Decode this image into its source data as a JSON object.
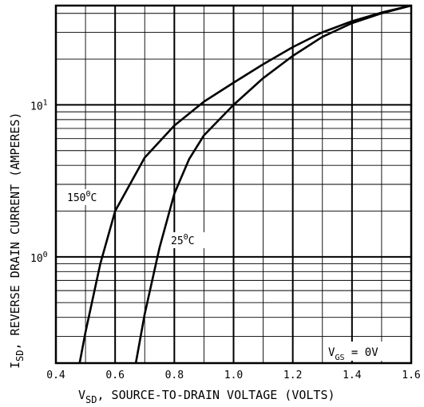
{
  "chart_data": {
    "type": "line",
    "xlabel": {
      "symbol": "V",
      "subscript": "SD",
      "text": ", SOURCE-TO-DRAIN VOLTAGE (VOLTS)"
    },
    "ylabel": {
      "symbol": "I",
      "subscript": "SD",
      "text": ", REVERSE DRAIN CURRENT (AMPERES)"
    },
    "x_ticks": [
      "0.4",
      "0.6",
      "0.8",
      "1.0",
      "1.2",
      "1.4",
      "1.6"
    ],
    "y_ticks": [
      {
        "base": "10",
        "exp": "0",
        "value": 1
      },
      {
        "base": "10",
        "exp": "1",
        "value": 10
      }
    ],
    "xlim": [
      0.4,
      1.6
    ],
    "ylim": [
      0.2,
      45
    ],
    "y_scale": "log",
    "grid": true,
    "series": [
      {
        "name": "150°C",
        "x": [
          0.48,
          0.5,
          0.55,
          0.6,
          0.7,
          0.8,
          0.9,
          1.0,
          1.1,
          1.2,
          1.3,
          1.4,
          1.5,
          1.6
        ],
        "y": [
          0.2,
          0.32,
          0.9,
          2.0,
          4.5,
          7.3,
          10.5,
          14.0,
          18.5,
          24.0,
          30.0,
          35.5,
          40.5,
          45.0
        ]
      },
      {
        "name": "25°C",
        "x": [
          0.67,
          0.7,
          0.75,
          0.8,
          0.85,
          0.9,
          1.0,
          1.1,
          1.2,
          1.3,
          1.4,
          1.5,
          1.6
        ],
        "y": [
          0.2,
          0.42,
          1.15,
          2.6,
          4.4,
          6.3,
          10.0,
          15.0,
          21.0,
          28.0,
          34.5,
          40.0,
          45.0
        ]
      }
    ],
    "annotations": {
      "curve_150": {
        "text": "150",
        "sup": "0",
        "tail": "C"
      },
      "curve_25": {
        "text": "25",
        "sup": "0",
        "tail": "C"
      },
      "condition": {
        "symbol": "V",
        "subscript": "GS",
        "text": " = 0V"
      }
    }
  }
}
